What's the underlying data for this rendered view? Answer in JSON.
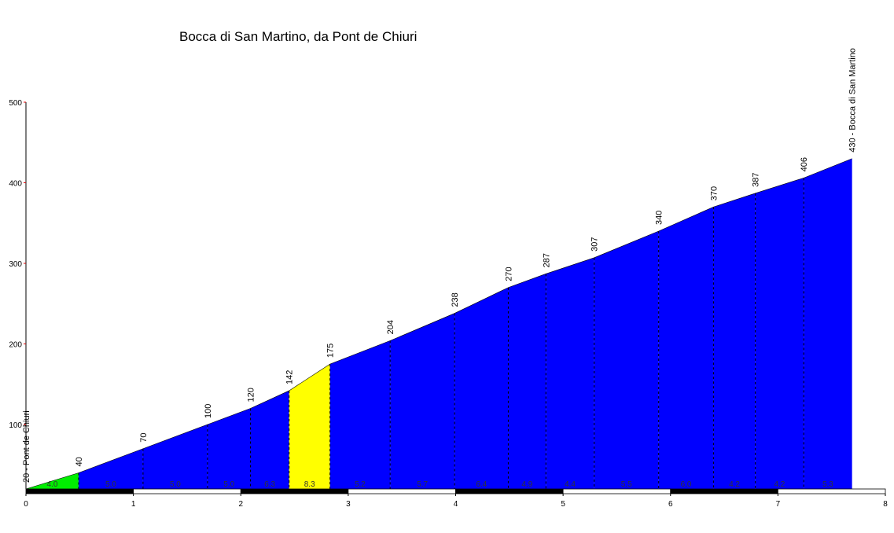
{
  "chart_data": {
    "type": "area",
    "title": "Bocca di San Martino, da Pont de Chiuri",
    "x": [
      0,
      0.49,
      1.09,
      1.69,
      2.09,
      2.45,
      2.83,
      3.39,
      3.99,
      4.49,
      4.84,
      5.29,
      5.89,
      6.4,
      6.79,
      7.24,
      7.69
    ],
    "values": [
      20,
      40,
      70,
      100,
      120,
      142,
      175,
      204,
      238,
      270,
      287,
      307,
      340,
      370,
      387,
      406,
      430
    ],
    "value_labels": [
      "20 - Pont de Chiuri",
      "40",
      "70",
      "100",
      "120",
      "142",
      "175",
      "204",
      "238",
      "270",
      "287",
      "307",
      "340",
      "370",
      "387",
      "406",
      "430 - Bocca di San Martino"
    ],
    "segment_labels": [
      "4.0",
      "5.0",
      "5.0",
      "5.0",
      "6.3",
      "8.3",
      "5.2",
      "5.7",
      "6.4",
      "4.9",
      "4.4",
      "5.5",
      "6.0",
      "4.2",
      "4.2",
      "5.3"
    ],
    "segment_colors": [
      "#00ee00",
      "#0000ff",
      "#0000ff",
      "#0000ff",
      "#0000ff",
      "#ffff00",
      "#0000ff",
      "#0000ff",
      "#0000ff",
      "#0000ff",
      "#0000ff",
      "#0000ff",
      "#0000ff",
      "#0000ff",
      "#0000ff",
      "#0000ff"
    ],
    "xlim": [
      0,
      8
    ],
    "xticks": [
      0,
      1,
      2,
      3,
      4,
      5,
      6,
      7,
      8
    ],
    "ylim": [
      20,
      500
    ],
    "yticks": [
      100,
      200,
      300,
      400,
      500
    ]
  }
}
